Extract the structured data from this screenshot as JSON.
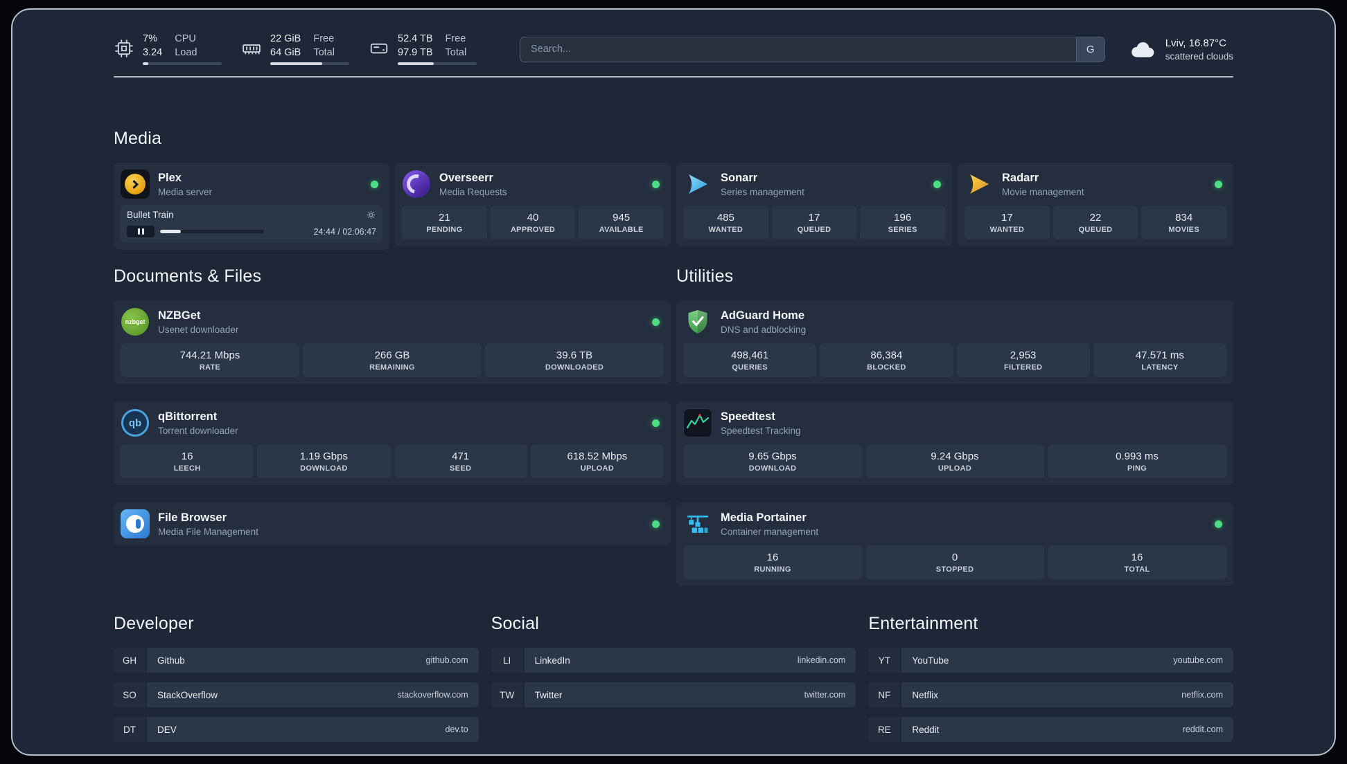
{
  "colors": {
    "status_online": "#4ade80",
    "accent_plex": "#e5a00d",
    "accent_sonarr": "#35c5f4",
    "accent_radarr": "#e9b83b",
    "accent_adguard": "#5fae63",
    "accent_speedtest": "#34d399",
    "accent_portainer": "#35bdf3"
  },
  "topbar": {
    "cpu": {
      "value_top": "7%",
      "value_bottom": "3.24",
      "label_top": "CPU",
      "label_bottom": "Load",
      "usage_pct": 7
    },
    "memory": {
      "value_top": "22 GiB",
      "value_bottom": "64 GiB",
      "label_top": "Free",
      "label_bottom": "Total",
      "usage_pct": 66
    },
    "disk": {
      "value_top": "52.4 TB",
      "value_bottom": "97.9 TB",
      "label_top": "Free",
      "label_bottom": "Total",
      "usage_pct": 46
    },
    "search": {
      "placeholder": "Search...",
      "provider_label": "G"
    },
    "weather": {
      "location": "Lviv, 16.87°C",
      "condition": "scattered clouds"
    }
  },
  "media": {
    "heading": "Media",
    "plex": {
      "name": "Plex",
      "description": "Media server",
      "status": "online",
      "player": {
        "title": "Bullet Train",
        "time": "24:44 / 02:06:47",
        "progress_pct": 20
      }
    },
    "overseerr": {
      "name": "Overseerr",
      "description": "Media Requests",
      "status": "online",
      "stats": [
        {
          "value": "21",
          "label": "PENDING"
        },
        {
          "value": "40",
          "label": "APPROVED"
        },
        {
          "value": "945",
          "label": "AVAILABLE"
        }
      ]
    },
    "sonarr": {
      "name": "Sonarr",
      "description": "Series management",
      "status": "online",
      "stats": [
        {
          "value": "485",
          "label": "WANTED"
        },
        {
          "value": "17",
          "label": "QUEUED"
        },
        {
          "value": "196",
          "label": "SERIES"
        }
      ]
    },
    "radarr": {
      "name": "Radarr",
      "description": "Movie management",
      "status": "online",
      "stats": [
        {
          "value": "17",
          "label": "WANTED"
        },
        {
          "value": "22",
          "label": "QUEUED"
        },
        {
          "value": "834",
          "label": "MOVIES"
        }
      ]
    }
  },
  "documents": {
    "heading": "Documents & Files",
    "nzbget": {
      "name": "NZBGet",
      "description": "Usenet downloader",
      "status": "online",
      "icon_text": "nzbget",
      "stats": [
        {
          "value": "744.21 Mbps",
          "label": "RATE"
        },
        {
          "value": "266 GB",
          "label": "REMAINING"
        },
        {
          "value": "39.6 TB",
          "label": "DOWNLOADED"
        }
      ]
    },
    "qbittorrent": {
      "name": "qBittorrent",
      "description": "Torrent downloader",
      "status": "online",
      "icon_text": "qb",
      "stats": [
        {
          "value": "16",
          "label": "LEECH"
        },
        {
          "value": "1.19 Gbps",
          "label": "DOWNLOAD"
        },
        {
          "value": "471",
          "label": "SEED"
        },
        {
          "value": "618.52 Mbps",
          "label": "UPLOAD"
        }
      ]
    },
    "filebrowser": {
      "name": "File Browser",
      "description": "Media File Management",
      "status": "online"
    }
  },
  "utilities": {
    "heading": "Utilities",
    "adguard": {
      "name": "AdGuard Home",
      "description": "DNS and adblocking",
      "stats": [
        {
          "value": "498,461",
          "label": "QUERIES"
        },
        {
          "value": "86,384",
          "label": "BLOCKED"
        },
        {
          "value": "2,953",
          "label": "FILTERED"
        },
        {
          "value": "47.571 ms",
          "label": "LATENCY"
        }
      ]
    },
    "speedtest": {
      "name": "Speedtest",
      "description": "Speedtest Tracking",
      "stats": [
        {
          "value": "9.65 Gbps",
          "label": "DOWNLOAD"
        },
        {
          "value": "9.24 Gbps",
          "label": "UPLOAD"
        },
        {
          "value": "0.993 ms",
          "label": "PING"
        }
      ]
    },
    "portainer": {
      "name": "Media Portainer",
      "description": "Container management",
      "status": "online",
      "stats": [
        {
          "value": "16",
          "label": "RUNNING"
        },
        {
          "value": "0",
          "label": "STOPPED"
        },
        {
          "value": "16",
          "label": "TOTAL"
        }
      ]
    }
  },
  "bookmarks": {
    "developer": {
      "heading": "Developer",
      "items": [
        {
          "abbr": "GH",
          "name": "Github",
          "domain": "github.com"
        },
        {
          "abbr": "SO",
          "name": "StackOverflow",
          "domain": "stackoverflow.com"
        },
        {
          "abbr": "DT",
          "name": "DEV",
          "domain": "dev.to"
        }
      ]
    },
    "social": {
      "heading": "Social",
      "items": [
        {
          "abbr": "LI",
          "name": "LinkedIn",
          "domain": "linkedin.com"
        },
        {
          "abbr": "TW",
          "name": "Twitter",
          "domain": "twitter.com"
        }
      ]
    },
    "entertainment": {
      "heading": "Entertainment",
      "items": [
        {
          "abbr": "YT",
          "name": "YouTube",
          "domain": "youtube.com"
        },
        {
          "abbr": "NF",
          "name": "Netflix",
          "domain": "netflix.com"
        },
        {
          "abbr": "RE",
          "name": "Reddit",
          "domain": "reddit.com"
        }
      ]
    }
  }
}
